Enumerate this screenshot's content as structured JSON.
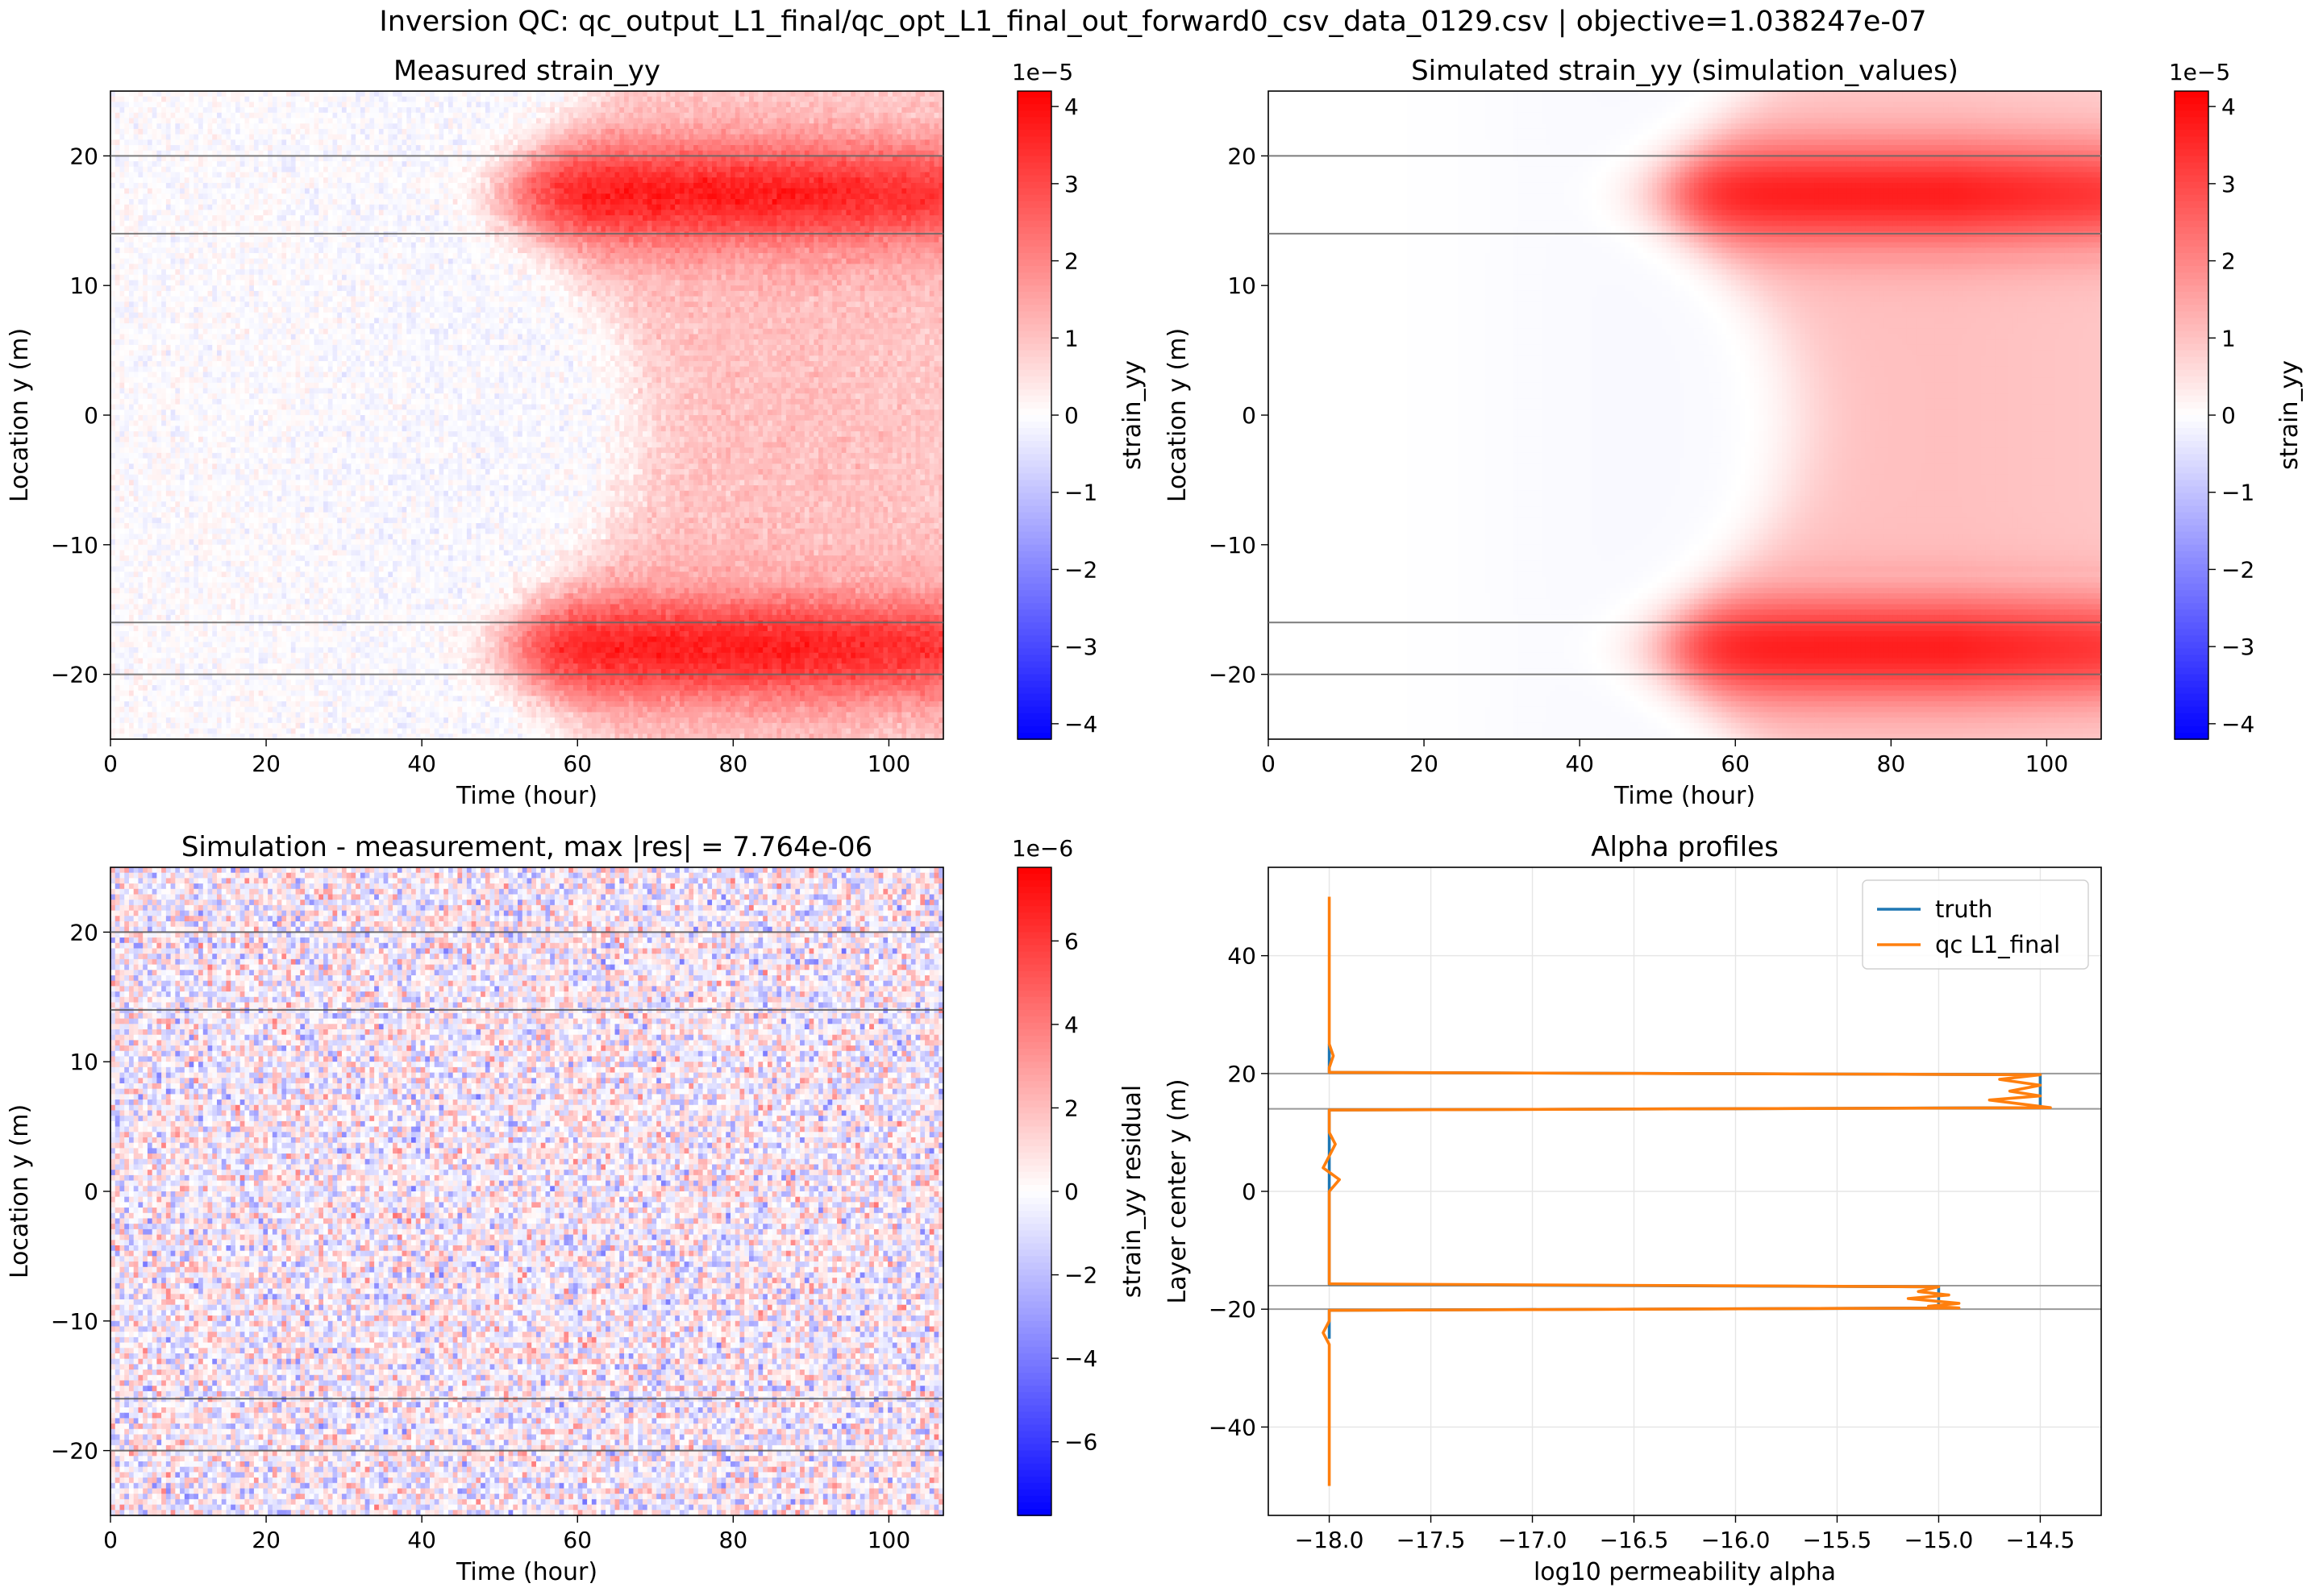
{
  "suptitle": "Inversion QC: qc_output_L1_final/qc_opt_L1_final_out_forward0_csv_data_0129.csv | objective=1.038247e-07",
  "chart_data": [
    {
      "type": "heatmap",
      "title": "Measured strain_yy",
      "xlabel": "Time (hour)",
      "ylabel": "Location y (m)",
      "xlim": [
        0,
        107
      ],
      "ylim": [
        -25,
        25
      ],
      "xticks": [
        0,
        20,
        40,
        60,
        80,
        100
      ],
      "yticks": [
        -20,
        -10,
        0,
        10,
        20
      ],
      "layer_boundaries_y": [
        20,
        14,
        -16,
        -20
      ],
      "colormap": "bwr",
      "colorbar": {
        "label": "strain_yy",
        "multiplier": "1e−5",
        "range": [
          -4.2,
          4.2
        ],
        "ticks": [
          -4,
          -3,
          -2,
          -1,
          0,
          1,
          2,
          3,
          4
        ]
      },
      "noise": true
    },
    {
      "type": "heatmap",
      "title": "Simulated strain_yy (simulation_values)",
      "xlabel": "Time (hour)",
      "ylabel": "Location y (m)",
      "xlim": [
        0,
        107
      ],
      "ylim": [
        -25,
        25
      ],
      "xticks": [
        0,
        20,
        40,
        60,
        80,
        100
      ],
      "yticks": [
        -20,
        -10,
        0,
        10,
        20
      ],
      "layer_boundaries_y": [
        20,
        14,
        -16,
        -20
      ],
      "colormap": "bwr",
      "colorbar": {
        "label": "strain_yy",
        "multiplier": "1e−5",
        "range": [
          -4.2,
          4.2
        ],
        "ticks": [
          -4,
          -3,
          -2,
          -1,
          0,
          1,
          2,
          3,
          4
        ]
      },
      "noise": false
    },
    {
      "type": "heatmap",
      "title": "Simulation - measurement, max |res| = 7.764e-06",
      "xlabel": "Time (hour)",
      "ylabel": "Location y (m)",
      "xlim": [
        0,
        107
      ],
      "ylim": [
        -25,
        25
      ],
      "xticks": [
        0,
        20,
        40,
        60,
        80,
        100
      ],
      "yticks": [
        -20,
        -10,
        0,
        10,
        20
      ],
      "layer_boundaries_y": [
        20,
        14,
        -16,
        -20
      ],
      "colormap": "bwr",
      "colorbar": {
        "label": "strain_yy residual",
        "multiplier": "1e−6",
        "range": [
          -7.764,
          7.764
        ],
        "ticks": [
          -6,
          -4,
          -2,
          0,
          2,
          4,
          6
        ]
      },
      "max_abs_residual": 7.764e-06
    },
    {
      "type": "line",
      "title": "Alpha profiles",
      "xlabel": "log10 permeability alpha",
      "ylabel": "Layer center y (m)",
      "xlim": [
        -18.3,
        -14.2
      ],
      "ylim": [
        -55,
        55
      ],
      "xticks": [
        -18.0,
        -17.5,
        -17.0,
        -16.5,
        -16.0,
        -15.5,
        -15.0,
        -14.5
      ],
      "yticks": [
        -40,
        -20,
        0,
        20,
        40
      ],
      "grid": true,
      "legend_position": "top-right",
      "layer_boundaries_y": [
        20,
        14,
        -16,
        -20
      ],
      "series": [
        {
          "name": "truth",
          "color": "#1f77b4",
          "points": [
            [
              -18.0,
              25
            ],
            [
              -18.0,
              20.2
            ],
            [
              -14.5,
              19.8
            ],
            [
              -14.5,
              14.2
            ],
            [
              -18.0,
              13.8
            ],
            [
              -18.0,
              -15.8
            ],
            [
              -15.0,
              -16.2
            ],
            [
              -15.0,
              -19.8
            ],
            [
              -18.0,
              -20.2
            ],
            [
              -18.0,
              -25
            ]
          ]
        },
        {
          "name": "qc L1_final",
          "color": "#ff7f0e",
          "points": [
            [
              -18.0,
              50
            ],
            [
              -18.0,
              25
            ],
            [
              -17.98,
              23
            ],
            [
              -18.0,
              21
            ],
            [
              -18.0,
              20.2
            ],
            [
              -14.5,
              19.8
            ],
            [
              -14.7,
              19
            ],
            [
              -14.5,
              18
            ],
            [
              -14.65,
              17
            ],
            [
              -14.5,
              16.2
            ],
            [
              -14.75,
              15.5
            ],
            [
              -14.45,
              14.2
            ],
            [
              -18.0,
              13.8
            ],
            [
              -18.0,
              10
            ],
            [
              -17.97,
              8
            ],
            [
              -18.0,
              6
            ],
            [
              -18.03,
              4
            ],
            [
              -17.95,
              2
            ],
            [
              -18.0,
              0
            ],
            [
              -18.0,
              -15.7
            ],
            [
              -15.0,
              -16.2
            ],
            [
              -15.1,
              -17
            ],
            [
              -14.95,
              -17.6
            ],
            [
              -15.15,
              -18.2
            ],
            [
              -14.9,
              -19
            ],
            [
              -15.05,
              -19.5
            ],
            [
              -14.9,
              -19.8
            ],
            [
              -18.0,
              -20.2
            ],
            [
              -18.0,
              -22
            ],
            [
              -18.03,
              -24
            ],
            [
              -18.0,
              -26
            ],
            [
              -18.0,
              -50
            ]
          ]
        }
      ]
    }
  ]
}
